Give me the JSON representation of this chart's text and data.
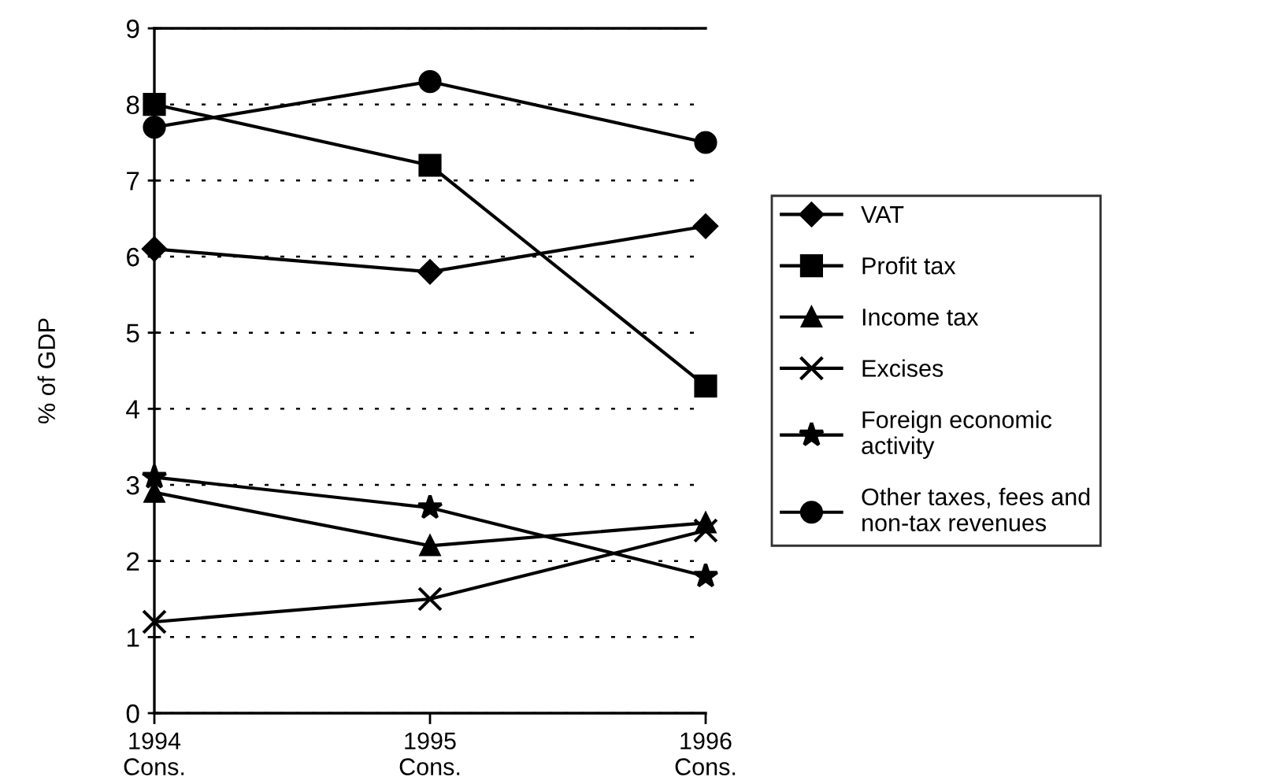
{
  "chart_data": {
    "type": "line",
    "ylabel": "% of GDP",
    "categories": [
      "1994\nCons.",
      "1995\nCons.",
      "1996\nCons."
    ],
    "series": [
      {
        "name": "VAT",
        "color": "#000000",
        "marker": "diamond",
        "values": [
          6.1,
          5.8,
          6.4
        ]
      },
      {
        "name": "Profit tax",
        "color": "#000000",
        "marker": "square",
        "values": [
          8.0,
          7.2,
          4.3
        ]
      },
      {
        "name": "Income tax",
        "color": "#000000",
        "marker": "triangle",
        "values": [
          2.9,
          2.2,
          2.5
        ]
      },
      {
        "name": "Excises",
        "color": "#000000",
        "marker": "cross",
        "values": [
          1.2,
          1.5,
          2.4
        ]
      },
      {
        "name": "Foreign economic\nactivity",
        "color": "#000000",
        "marker": "star",
        "values": [
          3.1,
          2.7,
          1.8
        ]
      },
      {
        "name": "Other taxes, fees and\nnon-tax revenues",
        "color": "#000000",
        "marker": "circle",
        "values": [
          7.7,
          8.3,
          7.5
        ]
      }
    ],
    "ylim": [
      0,
      9
    ],
    "yticks": [
      0,
      1,
      2,
      3,
      4,
      5,
      6,
      7,
      8,
      9
    ],
    "grid": "y",
    "legend": "right",
    "line_style": "solid"
  }
}
